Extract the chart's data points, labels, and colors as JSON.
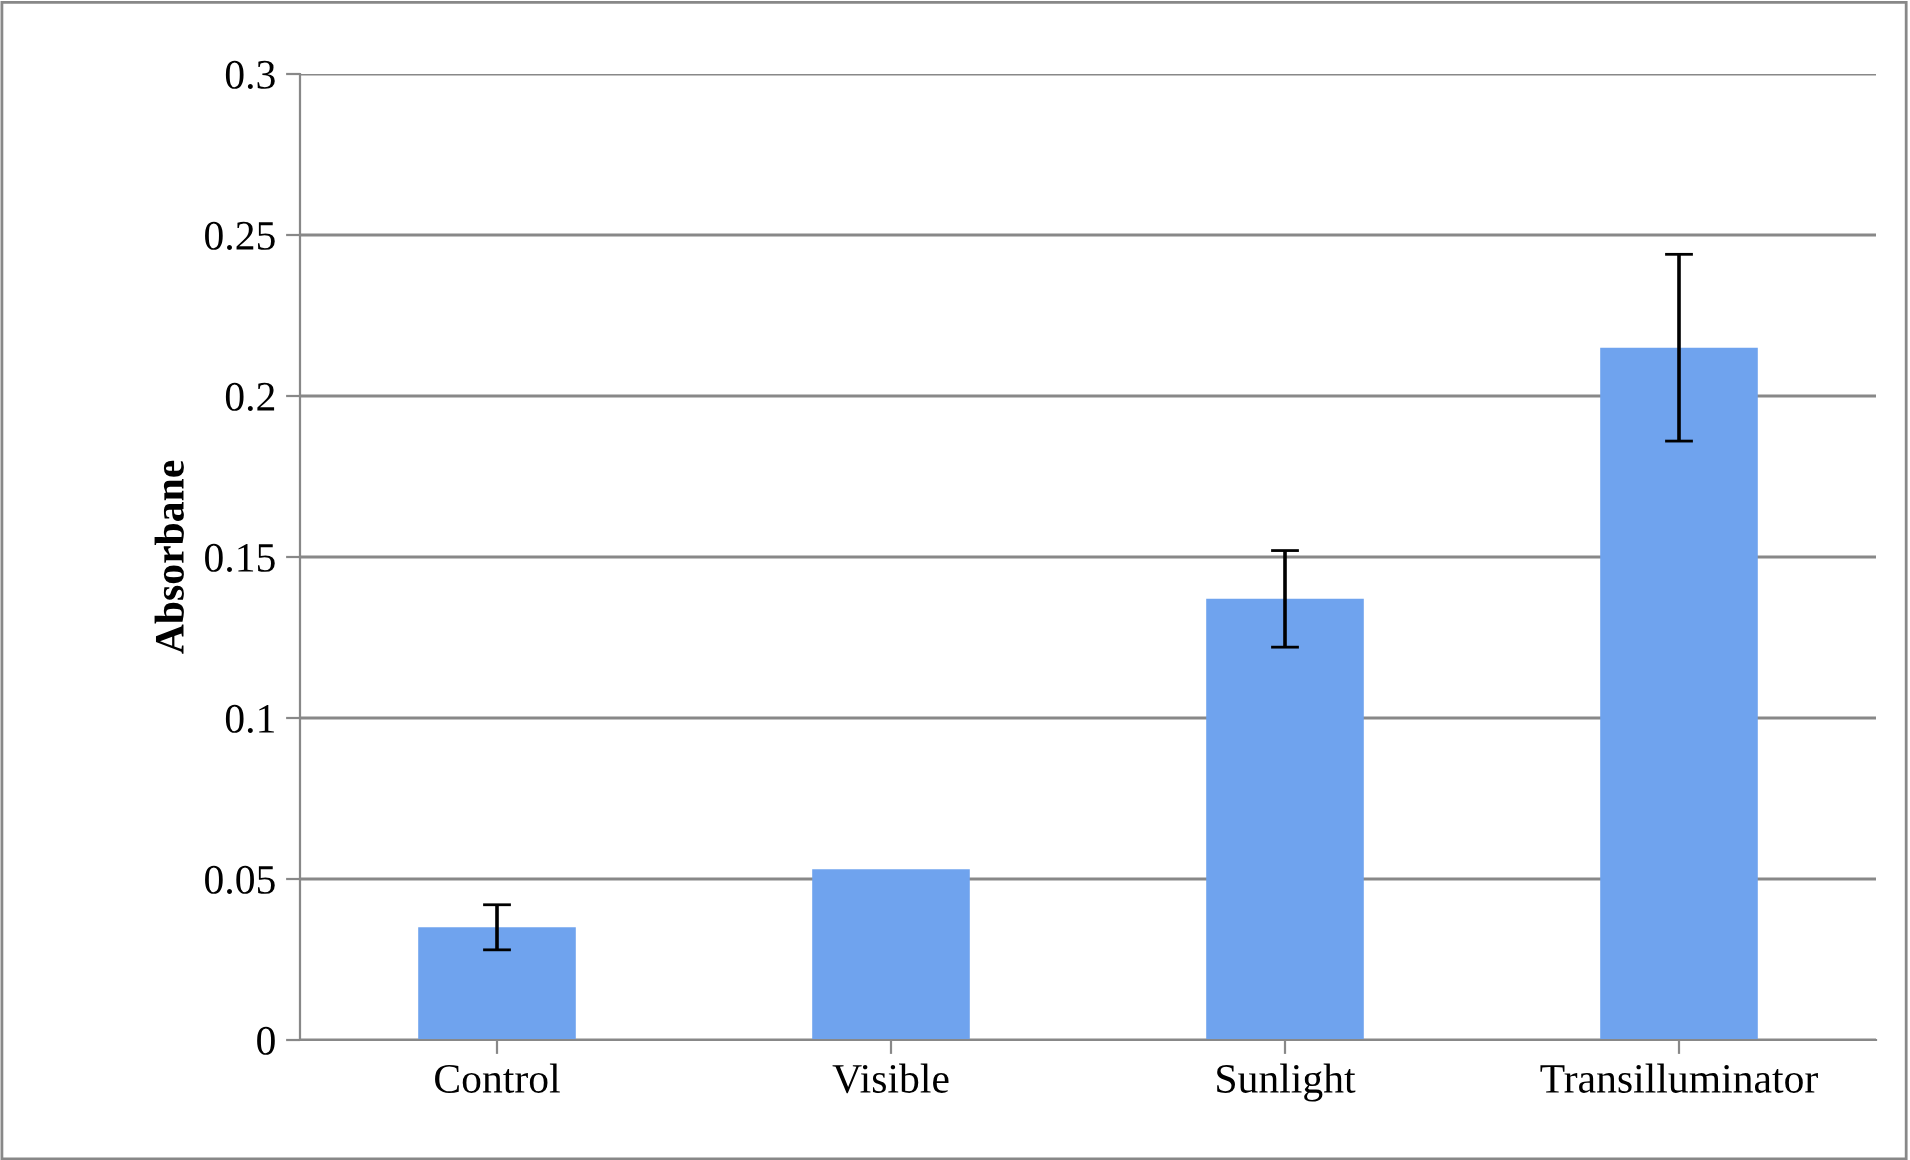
{
  "chart_data": {
    "type": "bar",
    "ylabel": "Absorbane",
    "categories": [
      "Control",
      "Visible",
      "Sunlight",
      "Transilluminator"
    ],
    "values": [
      0.035,
      0.053,
      0.137,
      0.215
    ],
    "errors": [
      0.007,
      null,
      0.015,
      0.029
    ],
    "color": "#6fa3ee",
    "ylim": [
      0,
      0.3
    ],
    "yticks": [
      0,
      0.05,
      0.1,
      0.15,
      0.2,
      0.25,
      0.3
    ],
    "grid": "y"
  }
}
